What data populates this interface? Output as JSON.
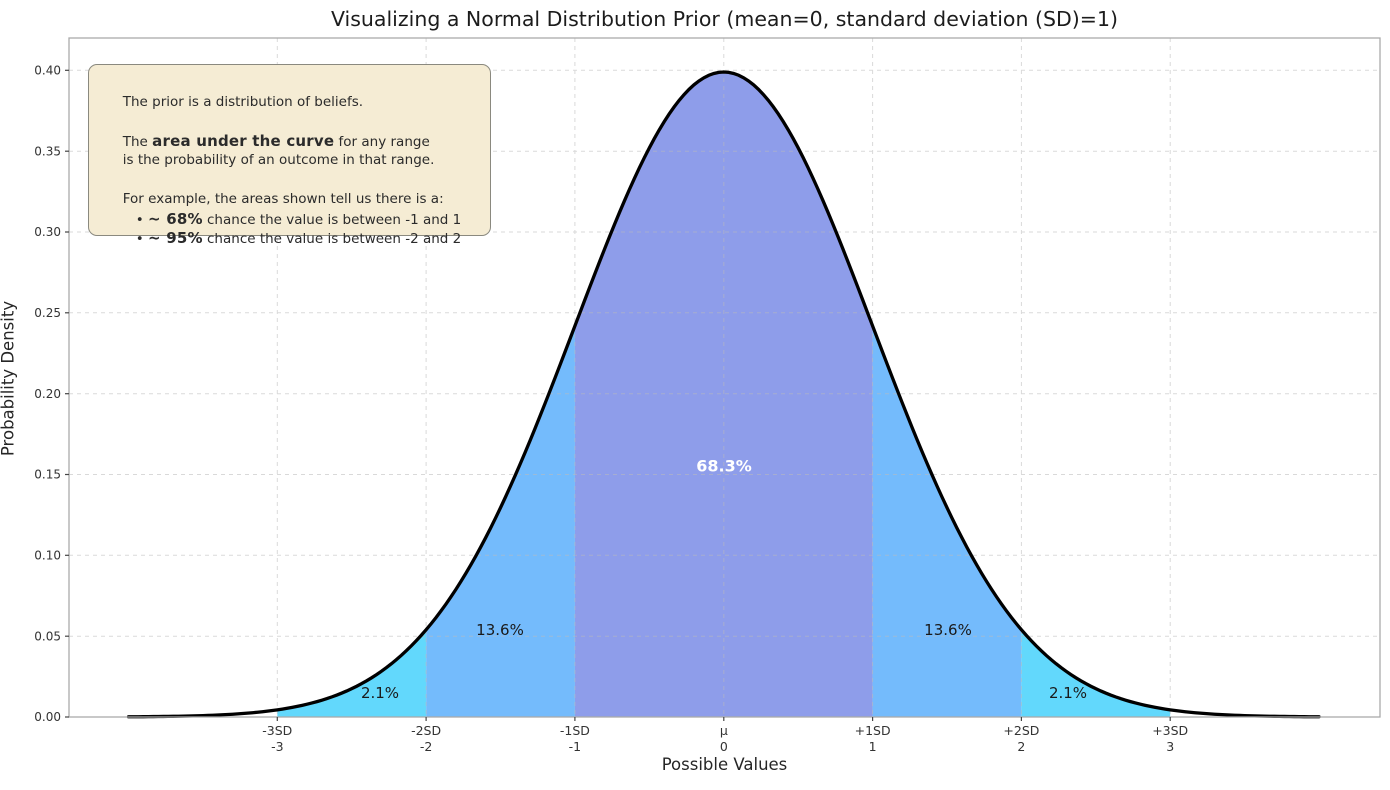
{
  "chart_data": {
    "type": "area",
    "title": "Visualizing a Normal Distribution Prior (mean=0, standard deviation (SD)=1)",
    "xlabel": "Possible Values",
    "ylabel": "Probability Density",
    "distribution": {
      "name": "normal",
      "mean": 0,
      "sd": 1,
      "peak_density": 0.3989
    },
    "curve_color": "#000000",
    "curve_x_range": [
      -4,
      4
    ],
    "xlim": [
      -4.4,
      4.41
    ],
    "ylim": [
      0,
      0.42
    ],
    "grid": true,
    "legend": "none",
    "y_ticks": [
      {
        "value": 0.0,
        "label": "0.00"
      },
      {
        "value": 0.05,
        "label": "0.05"
      },
      {
        "value": 0.1,
        "label": "0.10"
      },
      {
        "value": 0.15,
        "label": "0.15"
      },
      {
        "value": 0.2,
        "label": "0.20"
      },
      {
        "value": 0.25,
        "label": "0.25"
      },
      {
        "value": 0.3,
        "label": "0.30"
      },
      {
        "value": 0.35,
        "label": "0.35"
      },
      {
        "value": 0.4,
        "label": "0.40"
      }
    ],
    "x_ticks": [
      {
        "value": -3,
        "sd_label": "-3SD",
        "num_label": "-3"
      },
      {
        "value": -2,
        "sd_label": "-2SD",
        "num_label": "-2"
      },
      {
        "value": -1,
        "sd_label": "-1SD",
        "num_label": "-1"
      },
      {
        "value": 0,
        "sd_label": "μ",
        "num_label": "0"
      },
      {
        "value": 1,
        "sd_label": "+1SD",
        "num_label": "1"
      },
      {
        "value": 2,
        "sd_label": "+2SD",
        "num_label": "2"
      },
      {
        "value": 3,
        "sd_label": "+3SD",
        "num_label": "3"
      }
    ],
    "regions": [
      {
        "name": "left-tail-2sd-3sd",
        "range": [
          -3,
          -2
        ],
        "probability_label": "2.1%",
        "color": "#62d8fc"
      },
      {
        "name": "left-1sd-2sd",
        "range": [
          -2,
          -1
        ],
        "probability_label": "13.6%",
        "color": "#74bbfc"
      },
      {
        "name": "center-within-1sd",
        "range": [
          -1,
          1
        ],
        "probability_label": "68.3%",
        "color": "#8e9dea"
      },
      {
        "name": "right-1sd-2sd",
        "range": [
          1,
          2
        ],
        "probability_label": "13.6%",
        "color": "#74bbfc"
      },
      {
        "name": "right-tail-2sd-3sd",
        "range": [
          2,
          3
        ],
        "probability_label": "2.1%",
        "color": "#62d8fc"
      }
    ]
  },
  "note": {
    "line1": "The prior is a distribution of beliefs.",
    "line2_pre": "The ",
    "line2_bold": "area under the curve",
    "line2_post": " for any range",
    "line3": "is the probability of an outcome in that range.",
    "line4": "For example, the areas shown tell us there is a:",
    "bullet1_marker": "• ",
    "bullet1_bold": "~ 68%",
    "bullet1_text": " chance the value is between -1 and 1",
    "bullet2_marker": "• ",
    "bullet2_bold": "~ 95%",
    "bullet2_text": " chance the value is between -2 and 2"
  }
}
